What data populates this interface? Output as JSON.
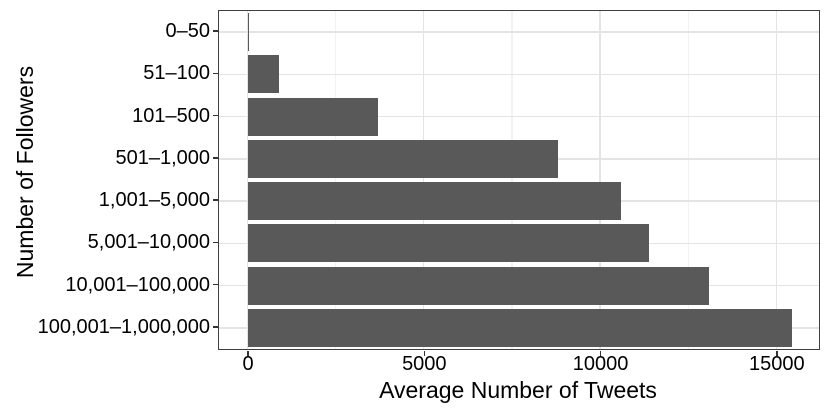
{
  "chart_data": {
    "type": "bar",
    "orientation": "horizontal",
    "title": "",
    "xlabel": "Average Number of Tweets",
    "ylabel": "Number of Followers",
    "categories": [
      "0–50",
      "51–100",
      "101–500",
      "501–1,000",
      "1,001–5,000",
      "5,001–10,000",
      "10,001–100,000",
      "100,001–1,000,000"
    ],
    "values": [
      50,
      900,
      3700,
      8800,
      10600,
      11400,
      13100,
      15450
    ],
    "x_major_ticks": [
      0,
      5000,
      10000,
      15000
    ],
    "x_major_tick_labels": [
      "0",
      "5000",
      "10000",
      "15000"
    ],
    "x_minor_ticks": [
      2500,
      7500,
      12500
    ],
    "xlim": [
      -810,
      16210
    ],
    "grid": "major and minor vertical, major horizontal at category centers",
    "legend": "none",
    "bar_fill_color": "#595959",
    "panel_border_color": "#404040",
    "major_grid_color": "#e4e4e4",
    "minor_grid_color": "#f2f2f2",
    "text_color": "#000000"
  }
}
